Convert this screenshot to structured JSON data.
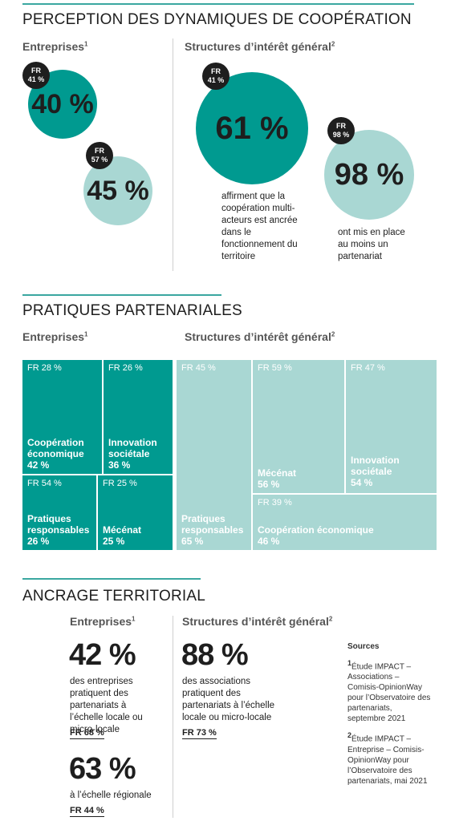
{
  "section1": {
    "title": "PERCEPTION DES DYNAMIQUES DE COOPÉRATION",
    "left_header": "Entreprises",
    "left_sup": "1",
    "right_header": "Structures d’intérêt général",
    "right_sup": "2",
    "circles": [
      {
        "value": "40 %",
        "badge_top": "FR",
        "badge_bottom": "41 %",
        "color": "#009a90"
      },
      {
        "value": "45 %",
        "badge_top": "FR",
        "badge_bottom": "57 %",
        "color": "#a9d7d3"
      },
      {
        "value": "61 %",
        "badge_top": "FR",
        "badge_bottom": "41 %",
        "color": "#009a90",
        "caption": "affirment que la coopération multi-acteurs est ancrée dans le fonctionnement du territoire"
      },
      {
        "value": "98 %",
        "badge_top": "FR",
        "badge_bottom": "98 %",
        "color": "#a9d7d3",
        "caption": "ont mis en place au moins un partenariat"
      }
    ]
  },
  "section2": {
    "title": "PRATIQUES PARTENARIALES",
    "left_header": "Entreprises",
    "left_sup": "1",
    "right_header": "Structures d’intérêt général",
    "right_sup": "2",
    "entreprises": [
      {
        "fr": "FR 28 %",
        "label": "Coopération économique",
        "value": "42 %"
      },
      {
        "fr": "FR 26 %",
        "label": "Innovation sociétale",
        "value": "36 %"
      },
      {
        "fr": "FR 54 %",
        "label": "Pratiques responsables",
        "value": "26 %"
      },
      {
        "fr": "FR 25 %",
        "label": "Mécénat",
        "value": "25 %"
      }
    ],
    "structures": [
      {
        "fr": "FR 45 %",
        "label": "Pratiques responsables",
        "value": "65 %"
      },
      {
        "fr": "FR 59 %",
        "label": "Mécénat",
        "value": "56 %"
      },
      {
        "fr": "FR 47 %",
        "label": "Innovation sociétale",
        "value": "54 %"
      },
      {
        "fr": "FR 39 %",
        "label": "Coopération économique",
        "value": "46 %"
      }
    ]
  },
  "section3": {
    "title": "ANCRAGE TERRITORIAL",
    "left_header": "Entreprises",
    "left_sup": "1",
    "right_header": "Structures d’intérêt général",
    "right_sup": "2",
    "left_stats": [
      {
        "value": "42 %",
        "desc": "des entreprises pratiquent des partenariats à l’échelle locale ou micro-locale",
        "fr": "FR 68 %"
      },
      {
        "value": "63 %",
        "desc": "à l’échelle régionale",
        "fr": "FR 44 %"
      }
    ],
    "right_stat": {
      "value": "88 %",
      "desc": "des associations pratiquent des partenariats à l’échelle locale ou micro-locale",
      "fr": "FR 73 %"
    },
    "sources": {
      "title": "Sources",
      "items": [
        {
          "num": "1",
          "text": "Étude IMPACT – Associations – Comisis-OpinionWay pour l’Observatoire des partenariats, septembre 2021"
        },
        {
          "num": "2",
          "text": "Étude IMPACT – Entreprise – Comisis-OpinionWay pour l’Observatoire des partenariats, mai 2021"
        }
      ]
    }
  }
}
